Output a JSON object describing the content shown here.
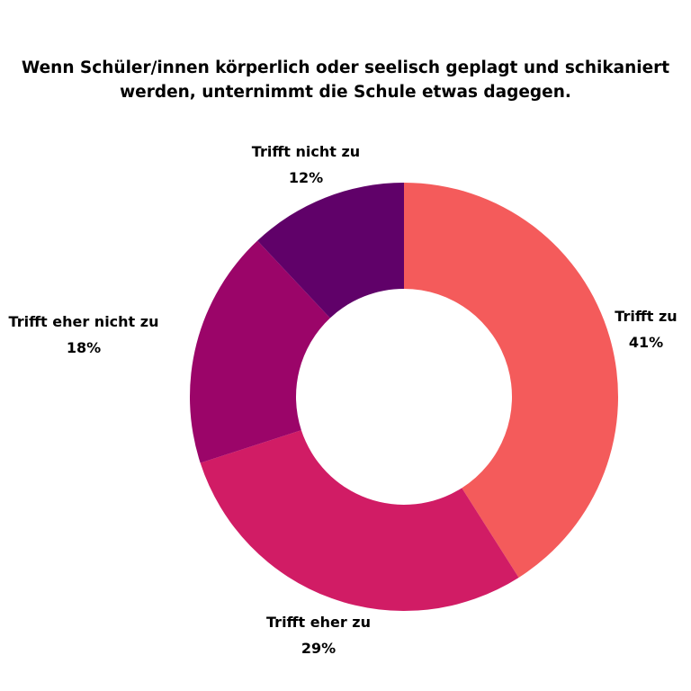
{
  "chart_data": {
    "type": "pie",
    "donut": true,
    "title_lines": [
      "Wenn Schüler/innen körperlich oder seelisch geplagt und schikaniert",
      "werden, unternimmt die Schule etwas dagegen."
    ],
    "categories": [
      "Trifft zu",
      "Trifft eher zu",
      "Trifft eher nicht zu",
      "Trifft nicht zu"
    ],
    "values": [
      41,
      29,
      18,
      12
    ],
    "value_labels": [
      "41%",
      "29%",
      "18%",
      "12%"
    ],
    "colors": [
      "#f45b5b",
      "#d11c65",
      "#9b0569",
      "#600169"
    ],
    "direction": "clockwise",
    "start": "12 o'clock",
    "legend": "none",
    "labels_placement": "outside"
  }
}
